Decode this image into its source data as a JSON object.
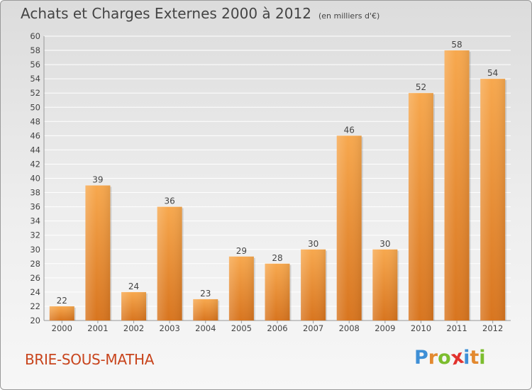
{
  "title": "Achats et Charges Externes 2000 à 2012",
  "subtitle": "(en milliers d'€)",
  "town": "BRIE-SOUS-MATHA",
  "logo": {
    "letters": [
      "P",
      "r",
      "o",
      "x",
      "i",
      "t",
      "i"
    ],
    "colors": [
      "#3e8fd6",
      "#e3892f",
      "#7cbd2e",
      "#e2322d",
      "#3e8fd6",
      "#e3892f",
      "#7cbd2e"
    ]
  },
  "colors": {
    "bar_light": "#f7a84e",
    "bar_dark": "#d8751f",
    "grid": "#ffffff",
    "text": "#444444",
    "town": "#c8441c"
  },
  "chart_data": {
    "type": "bar",
    "title": "Achats et Charges Externes 2000 à 2012",
    "subtitle": "(en milliers d'€)",
    "categories": [
      "2000",
      "2001",
      "2002",
      "2003",
      "2004",
      "2005",
      "2006",
      "2007",
      "2008",
      "2009",
      "2010",
      "2011",
      "2012"
    ],
    "values": [
      22,
      39,
      24,
      36,
      23,
      29,
      28,
      30,
      46,
      30,
      52,
      58,
      54
    ],
    "ylim": [
      20,
      60
    ],
    "yticks": [
      20,
      22,
      24,
      26,
      28,
      30,
      32,
      34,
      36,
      38,
      40,
      42,
      44,
      46,
      48,
      50,
      52,
      54,
      56,
      58,
      60
    ],
    "grid": true,
    "data_labels": true,
    "xlabel": "",
    "ylabel": ""
  }
}
